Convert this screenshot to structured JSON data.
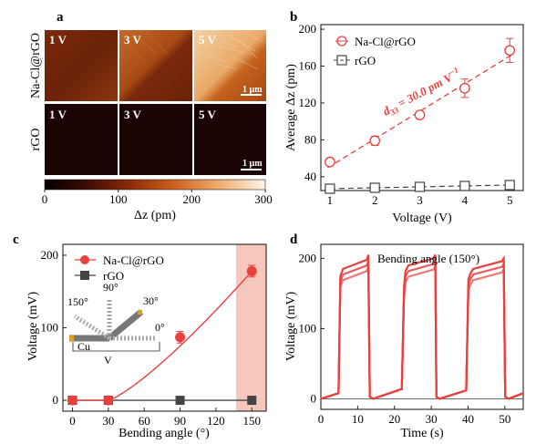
{
  "colors": {
    "nacl": "#e8403f",
    "rgo": "#444444",
    "panel_dark": "#1b0504",
    "highlight": "#f6c7bd"
  },
  "panel_a": {
    "label": "a",
    "row_labels": [
      "Na-Cl@rGO",
      "rGO"
    ],
    "tile_labels_top": [
      "1 V",
      "3 V",
      "5 V"
    ],
    "tile_labels_bottom": [
      "1 V",
      "3 V",
      "5 V"
    ],
    "scale_bar_top": "1 µm",
    "scale_bar_bottom": "1 µm",
    "colorbar_ticks": [
      "0",
      "100",
      "200",
      "300"
    ],
    "colorbar_label": "Δz (pm)"
  },
  "chart_data": [
    {
      "panel": "b",
      "type": "scatter",
      "xlabel": "Voltage (V)",
      "ylabel": "Average Δz (pm)",
      "xlim": [
        0.8,
        5.3
      ],
      "ylim": [
        25,
        205
      ],
      "x_ticks": [
        1,
        2,
        3,
        4,
        5
      ],
      "y_ticks": [
        40,
        80,
        120,
        160,
        200
      ],
      "annotation": "d33 = 30.0 pm V−1",
      "legend_position": "top-left",
      "series": [
        {
          "name": "Na-Cl@rGO",
          "x": [
            1,
            2,
            3,
            4,
            5
          ],
          "y": [
            56,
            79,
            107,
            136,
            177
          ],
          "err": [
            4,
            5,
            4,
            10,
            13
          ],
          "marker": "circle-open",
          "color": "#e8403f"
        },
        {
          "name": "rGO",
          "x": [
            1,
            2,
            3,
            4,
            5
          ],
          "y": [
            27,
            28,
            29,
            30,
            31
          ],
          "err": [
            2,
            2,
            2,
            2,
            2
          ],
          "marker": "square-open",
          "color": "#444444"
        }
      ]
    },
    {
      "panel": "c",
      "type": "line",
      "xlabel": "Bending angle (°)",
      "ylabel": "Voltage (mV)",
      "xlim": [
        -8,
        162
      ],
      "ylim": [
        -15,
        215
      ],
      "x_ticks": [
        0,
        30,
        60,
        90,
        120,
        150
      ],
      "y_ticks": [
        0,
        100,
        200
      ],
      "legend_position": "top-left",
      "highlight_x": 150,
      "series": [
        {
          "name": "Na-Cl@rGO",
          "x": [
            0,
            30,
            90,
            150
          ],
          "y": [
            0,
            0,
            87,
            178
          ],
          "err": [
            0,
            0,
            8,
            8
          ],
          "marker": "circle-filled",
          "color": "#e8403f"
        },
        {
          "name": "rGO",
          "x": [
            0,
            30,
            90,
            150
          ],
          "y": [
            0,
            0,
            0,
            0
          ],
          "marker": "square-filled",
          "color": "#444444"
        }
      ],
      "inset": {
        "angles": [
          "150°",
          "90°",
          "30°",
          "0°"
        ],
        "labels": [
          "Cu",
          "V"
        ]
      }
    },
    {
      "panel": "d",
      "type": "line",
      "title": "Bending angle (150°)",
      "xlabel": "Time (s)",
      "ylabel": "Voltage (mV)",
      "xlim": [
        0,
        55
      ],
      "ylim": [
        -15,
        220
      ],
      "x_ticks": [
        0,
        10,
        20,
        30,
        40,
        50
      ],
      "y_ticks": [
        0,
        100,
        200
      ],
      "series": [
        {
          "name": "Na-Cl@rGO",
          "x": [
            0,
            4.8,
            5.3,
            6.0,
            12.5,
            12.9,
            13.3,
            14.2,
            22.0,
            22.6,
            23.0,
            23.8,
            30.6,
            31.1,
            31.4,
            32.2,
            39.5,
            40.1,
            40.6,
            41.4,
            49.2,
            49.7,
            50.1,
            51.0,
            55
          ],
          "y": [
            0,
            8,
            175,
            185,
            198,
            205,
            3,
            0,
            14,
            160,
            182,
            190,
            200,
            205,
            3,
            0,
            12,
            170,
            178,
            185,
            196,
            200,
            3,
            0,
            8
          ],
          "color": "#e8403f"
        }
      ]
    }
  ]
}
